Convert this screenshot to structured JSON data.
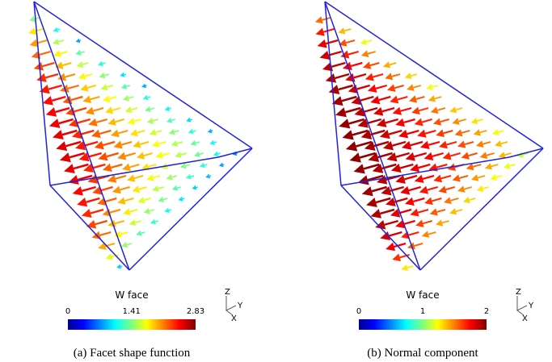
{
  "panels": [
    {
      "caption": "(a) Facet shape function",
      "colorbar": {
        "title": "W face",
        "lim": [
          0,
          2.83
        ],
        "ticks": [
          0,
          1.41,
          2.83
        ]
      },
      "axes": {
        "z": "Z",
        "y": "Y",
        "x": "X"
      }
    },
    {
      "caption": "(b) Normal component",
      "colorbar": {
        "title": "W face",
        "lim": [
          0,
          2
        ],
        "ticks": [
          0,
          1,
          2
        ]
      },
      "axes": {
        "z": "Z",
        "y": "Y",
        "x": "X"
      }
    }
  ]
}
